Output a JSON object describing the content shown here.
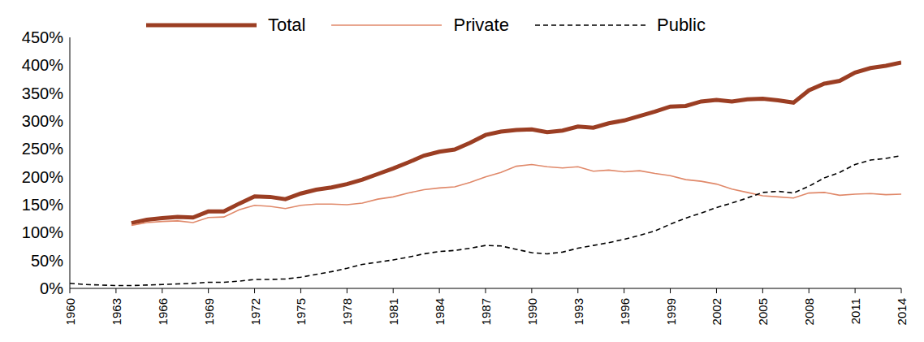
{
  "chart_data": {
    "type": "line",
    "x": [
      1960,
      1961,
      1962,
      1963,
      1964,
      1965,
      1966,
      1967,
      1968,
      1969,
      1970,
      1971,
      1972,
      1973,
      1974,
      1975,
      1976,
      1977,
      1978,
      1979,
      1980,
      1981,
      1982,
      1983,
      1984,
      1985,
      1986,
      1987,
      1988,
      1989,
      1990,
      1991,
      1992,
      1993,
      1994,
      1995,
      1996,
      1997,
      1998,
      1999,
      2000,
      2001,
      2002,
      2003,
      2004,
      2005,
      2006,
      2007,
      2008,
      2009,
      2010,
      2011,
      2012,
      2013,
      2014
    ],
    "series": [
      {
        "name": "Total",
        "color": "#9b3e23",
        "line_style": "solid",
        "values": [
          null,
          null,
          null,
          null,
          117,
          123,
          126,
          128,
          127,
          138,
          138,
          152,
          165,
          164,
          160,
          170,
          177,
          181,
          187,
          195,
          205,
          215,
          226,
          238,
          245,
          249,
          261,
          275,
          281,
          284,
          285,
          280,
          283,
          290,
          288,
          296,
          301,
          309,
          317,
          326,
          327,
          335,
          338,
          335,
          339,
          340,
          337,
          333,
          355,
          367,
          372,
          387,
          395,
          399,
          405
        ]
      },
      {
        "name": "Private",
        "color": "#e0896a",
        "line_style": "solid",
        "values": [
          null,
          null,
          null,
          null,
          113,
          118,
          120,
          121,
          118,
          127,
          128,
          141,
          149,
          147,
          143,
          149,
          151,
          151,
          150,
          153,
          160,
          164,
          171,
          177,
          180,
          182,
          190,
          200,
          208,
          219,
          222,
          218,
          216,
          218,
          210,
          212,
          209,
          211,
          206,
          202,
          195,
          192,
          187,
          178,
          172,
          166,
          164,
          162,
          171,
          172,
          167,
          169,
          170,
          168,
          169
        ]
      },
      {
        "name": "Public",
        "color": "#000000",
        "line_style": "dashed",
        "values": [
          9,
          7,
          6,
          5,
          5,
          6,
          7,
          8,
          9,
          11,
          11,
          13,
          16,
          16,
          17,
          20,
          25,
          30,
          36,
          43,
          47,
          51,
          56,
          62,
          66,
          68,
          72,
          77,
          76,
          70,
          64,
          62,
          65,
          72,
          77,
          82,
          88,
          95,
          103,
          115,
          126,
          135,
          145,
          153,
          162,
          172,
          174,
          171,
          183,
          198,
          208,
          222,
          230,
          233,
          238
        ]
      }
    ],
    "xlim": [
      1960,
      2014
    ],
    "xticks": [
      1960,
      1963,
      1966,
      1969,
      1972,
      1975,
      1978,
      1981,
      1984,
      1987,
      1990,
      1993,
      1996,
      1999,
      2002,
      2005,
      2008,
      2011,
      2014
    ],
    "ylim": [
      0,
      450
    ],
    "yticks": [
      {
        "value": 0,
        "label": "0%"
      },
      {
        "value": 50,
        "label": "50%"
      },
      {
        "value": 100,
        "label": "100%"
      },
      {
        "value": 150,
        "label": "150%"
      },
      {
        "value": 200,
        "label": "200%"
      },
      {
        "value": 250,
        "label": "250%"
      },
      {
        "value": 300,
        "label": "300%"
      },
      {
        "value": 350,
        "label": "350%"
      },
      {
        "value": 400,
        "label": "400%"
      },
      {
        "value": 450,
        "label": "450%"
      }
    ],
    "grid": false,
    "legend": "top"
  }
}
